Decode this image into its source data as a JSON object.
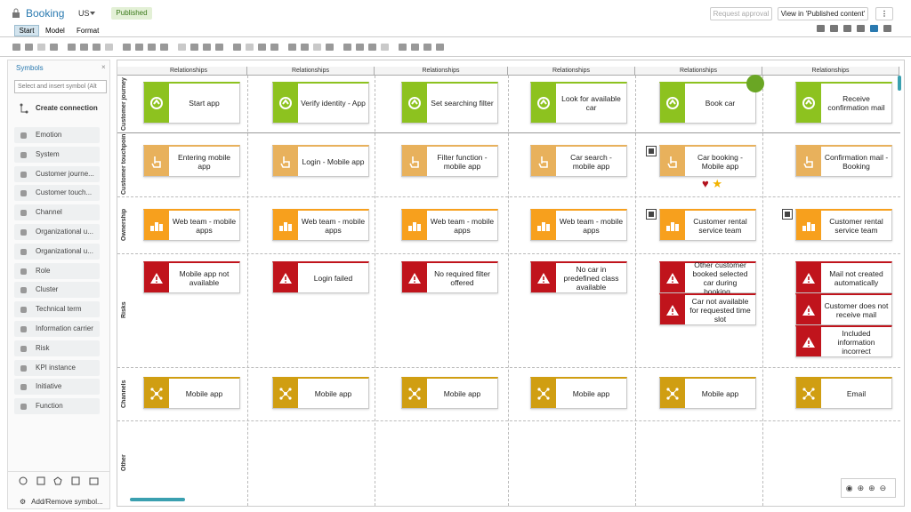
{
  "header": {
    "title": "Booking",
    "locale": "US",
    "status": "Published",
    "buttons": [
      "Request approval",
      "View in 'Published content'"
    ]
  },
  "tabs": [
    "Start",
    "Model",
    "Format"
  ],
  "sidebar": {
    "title": "Symbols",
    "search_placeholder": "Select and insert symbol (Alt",
    "create_connection": "Create connection",
    "symbols": [
      "Emotion",
      "System",
      "Customer journe...",
      "Customer touch...",
      "Channel",
      "Organizational u...",
      "Organizational u...",
      "Role",
      "Cluster",
      "Technical term",
      "Information carrier",
      "Risk",
      "KPI instance",
      "Initiative",
      "Function"
    ],
    "add_remove": "Add/Remove symbol..."
  },
  "canvas": {
    "column_headers": [
      "Relationships",
      "Relationships",
      "Relationships",
      "Relationships",
      "Relationships",
      "Relationships"
    ],
    "rows": [
      {
        "label": "Customer journey ...",
        "cells": [
          [
            "Start app"
          ],
          [
            "Verify identity - App"
          ],
          [
            "Set searching filter"
          ],
          [
            "Look for available car"
          ],
          [
            "Book car"
          ],
          [
            "Receive confirmation mail"
          ]
        ]
      },
      {
        "label": "Customer touchpoints",
        "cells": [
          [
            "Entering mobile app"
          ],
          [
            "Login - Mobile app"
          ],
          [
            "Filter function - mobile app"
          ],
          [
            "Car search - mobile app"
          ],
          [
            "Car booking - Mobile app"
          ],
          [
            "Confirmation mail - Booking"
          ]
        ]
      },
      {
        "label": "Ownership",
        "cells": [
          [
            "Web team - mobile apps"
          ],
          [
            "Web team - mobile apps"
          ],
          [
            "Web team - mobile apps"
          ],
          [
            "Web team - mobile apps"
          ],
          [
            "Customer rental service team"
          ],
          [
            "Customer rental service team"
          ]
        ]
      },
      {
        "label": "Risks",
        "cells": [
          [
            "Mobile app not available"
          ],
          [
            "Login failed"
          ],
          [
            "No required filter offered"
          ],
          [
            "No car in predefined class available"
          ],
          [
            "Other customer booked selected car during booking...",
            "Car not available for requested time slot"
          ],
          [
            "Mail not created automatically",
            "Customer does not receive mail",
            "Included information incorrect"
          ]
        ]
      },
      {
        "label": "Channels",
        "cells": [
          [
            "Mobile app"
          ],
          [
            "Mobile app"
          ],
          [
            "Mobile app"
          ],
          [
            "Mobile app"
          ],
          [
            "Mobile app"
          ],
          [
            "Email"
          ]
        ]
      },
      {
        "label": "Other",
        "cells": [
          [],
          [],
          [],
          [],
          [],
          []
        ]
      }
    ]
  }
}
